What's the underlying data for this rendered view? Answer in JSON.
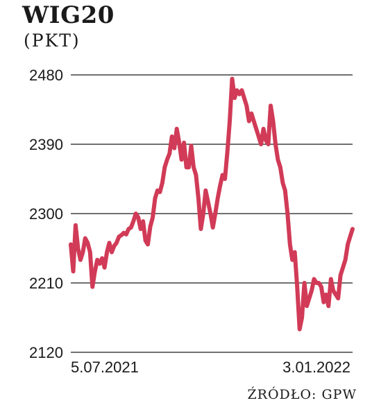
{
  "chart_data": {
    "type": "line",
    "title": "WIG20",
    "unit": "(PKT)",
    "source": "ŹRÓDŁO: GPW",
    "ylim": [
      2120,
      2480
    ],
    "yticks": [
      "2480",
      "2390",
      "2300",
      "2210",
      "2120"
    ],
    "ytick_values": [
      2480,
      2390,
      2300,
      2210,
      2120
    ],
    "x_start_label": "5.07.2021",
    "x_end_label": "3.01.2022",
    "grid": true,
    "line_color": "#d13b57",
    "series": [
      {
        "values": [
          2260,
          2225,
          2285,
          2255,
          2240,
          2250,
          2268,
          2262,
          2250,
          2205,
          2225,
          2240,
          2235,
          2242,
          2230,
          2250,
          2262,
          2250,
          2258,
          2262,
          2270,
          2272,
          2275,
          2273,
          2280,
          2282,
          2290,
          2300,
          2295,
          2280,
          2290,
          2265,
          2260,
          2283,
          2295,
          2320,
          2330,
          2328,
          2340,
          2360,
          2370,
          2378,
          2400,
          2385,
          2410,
          2392,
          2370,
          2392,
          2360,
          2360,
          2388,
          2360,
          2350,
          2320,
          2280,
          2300,
          2330,
          2315,
          2300,
          2282,
          2300,
          2320,
          2336,
          2350,
          2345,
          2380,
          2420,
          2475,
          2450,
          2460,
          2455,
          2460,
          2450,
          2440,
          2420,
          2430,
          2420,
          2410,
          2400,
          2390,
          2410,
          2395,
          2390,
          2440,
          2420,
          2390,
          2370,
          2360,
          2340,
          2330,
          2300,
          2260,
          2240,
          2250,
          2205,
          2150,
          2165,
          2210,
          2180,
          2190,
          2200,
          2215,
          2210,
          2210,
          2205,
          2185,
          2195,
          2180,
          2215,
          2200,
          2195,
          2190,
          2220,
          2230,
          2240,
          2260,
          2270,
          2280
        ]
      }
    ]
  }
}
